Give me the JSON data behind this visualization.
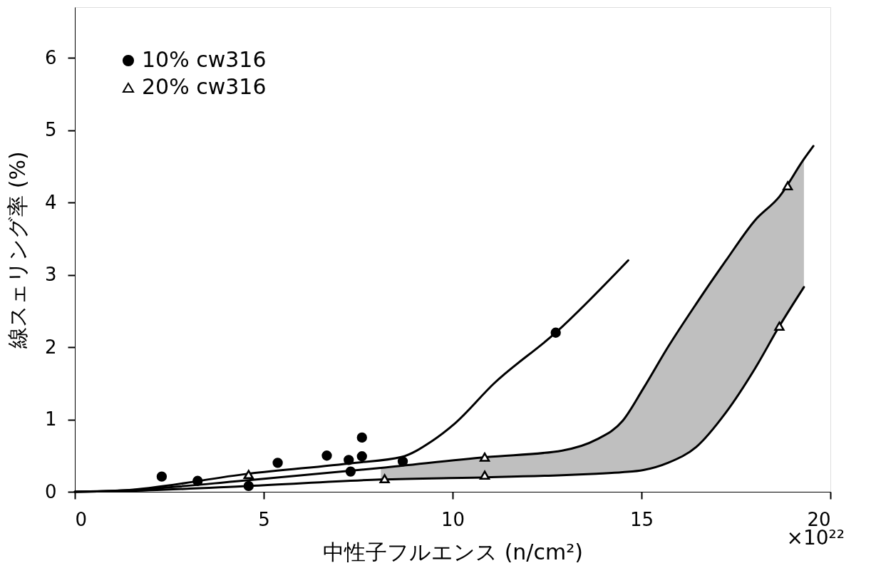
{
  "chart_data": {
    "type": "line",
    "xlabel": "中性子フルエンス (n/cm²)",
    "ylabel": "線スェリング率 (%)",
    "xlim": [
      0,
      20
    ],
    "xticks": [
      0,
      5,
      10,
      15,
      20
    ],
    "ylim": [
      0,
      6.7
    ],
    "yticks": [
      0,
      1,
      2,
      3,
      4,
      5,
      6
    ],
    "grid": false,
    "legend": "top left",
    "line_style": "solid",
    "annotations": [
      "×10²²"
    ],
    "series": [
      {
        "color": "#000000",
        "marker": "none",
        "x": [
          0,
          1.3,
          4.6,
          7.4,
          8.64,
          9.45,
          10.05,
          11.1,
          12.73,
          14.65
        ],
        "values": [
          0,
          0.02,
          0.25,
          0.4,
          0.48,
          0.7,
          0.94,
          1.5,
          2.2,
          3.2
        ]
      },
      {
        "color": "#000000",
        "marker": "none",
        "x": [
          0,
          1.3,
          4.6,
          8.1,
          10.9,
          12.9,
          13.8,
          14.5,
          15.05,
          15.7,
          16.45,
          17.24,
          18.0,
          18.65,
          19.3,
          19.55
        ],
        "values": [
          0,
          0.02,
          0.16,
          0.33,
          0.48,
          0.57,
          0.72,
          0.98,
          1.43,
          2.0,
          2.6,
          3.2,
          3.75,
          4.08,
          4.6,
          4.78
        ],
        "upper": [
          null,
          null,
          null,
          0.33,
          0.48,
          0.57,
          0.72,
          0.98,
          1.43,
          2.0,
          2.6,
          3.2,
          3.75,
          4.08,
          4.6,
          null
        ],
        "lower": [
          null,
          null,
          null,
          0.17,
          0.2,
          0.23,
          0.25,
          0.27,
          0.3,
          0.4,
          0.62,
          1.1,
          1.7,
          2.29,
          2.83,
          null
        ]
      },
      {
        "color": "#000000",
        "marker": "none",
        "x": [
          0,
          1.3,
          4.6,
          8.1,
          10.9,
          12.9,
          13.8,
          14.5,
          15.05,
          15.7,
          16.45,
          17.24,
          18.0,
          18.65,
          19.3
        ],
        "values": [
          0,
          0.01,
          0.08,
          0.17,
          0.2,
          0.23,
          0.25,
          0.27,
          0.3,
          0.4,
          0.62,
          1.1,
          1.7,
          2.29,
          2.83
        ]
      },
      {
        "type": "scatter",
        "name": "10% cw316",
        "color": "#000000",
        "marker": "circle",
        "x": [
          2.3,
          3.25,
          4.6,
          5.37,
          6.67,
          7.25,
          7.3,
          7.6,
          7.6,
          8.68,
          12.73
        ],
        "values": [
          0.21,
          0.15,
          0.08,
          0.4,
          0.5,
          0.44,
          0.28,
          0.49,
          0.75,
          0.42,
          2.2
        ]
      },
      {
        "type": "scatter",
        "name": "20% cw316",
        "color": "#000000",
        "marker": "triangle",
        "x": [
          4.6,
          8.2,
          10.85,
          10.85,
          18.65,
          18.87
        ],
        "values": [
          0.24,
          0.18,
          0.48,
          0.23,
          2.29,
          4.23
        ]
      }
    ]
  }
}
